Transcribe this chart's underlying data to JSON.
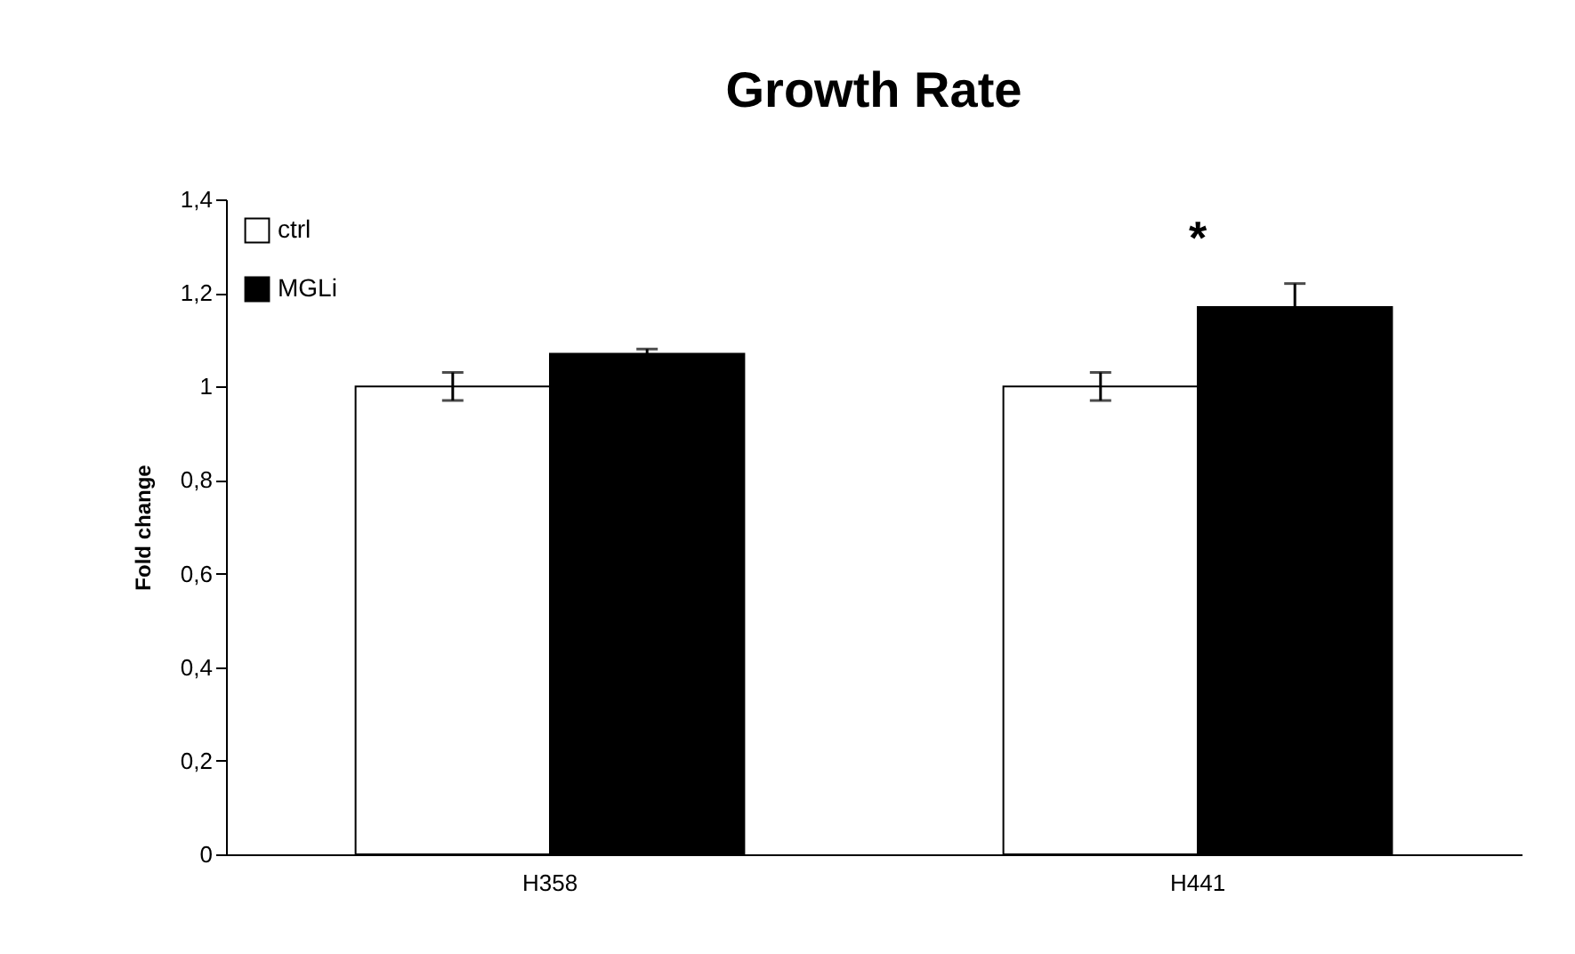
{
  "chart_data": {
    "type": "bar",
    "title": "Growth Rate",
    "ylabel": "Fold change",
    "categories": [
      "H358",
      "H441"
    ],
    "series": [
      {
        "name": "ctrl",
        "color": "#ffffff",
        "values": [
          1.0,
          1.0
        ],
        "errors": [
          0.03,
          0.03
        ]
      },
      {
        "name": "MGLi",
        "color": "#000000",
        "values": [
          1.07,
          1.17
        ],
        "errors": [
          0.01,
          0.05
        ]
      }
    ],
    "ylim": [
      0,
      1.4
    ],
    "yticks": [
      0,
      {
        "value": 0.2,
        "label": "0,2"
      },
      {
        "value": 0.4,
        "label": "0,4"
      },
      {
        "value": 0.6,
        "label": "0,6"
      },
      {
        "value": 0.8,
        "label": "0,8"
      },
      1,
      {
        "value": 1.2,
        "label": "1,2"
      },
      {
        "value": 1.4,
        "label": "1,4"
      }
    ],
    "annotations": [
      "*"
    ],
    "legend": "top left",
    "grid": false
  }
}
